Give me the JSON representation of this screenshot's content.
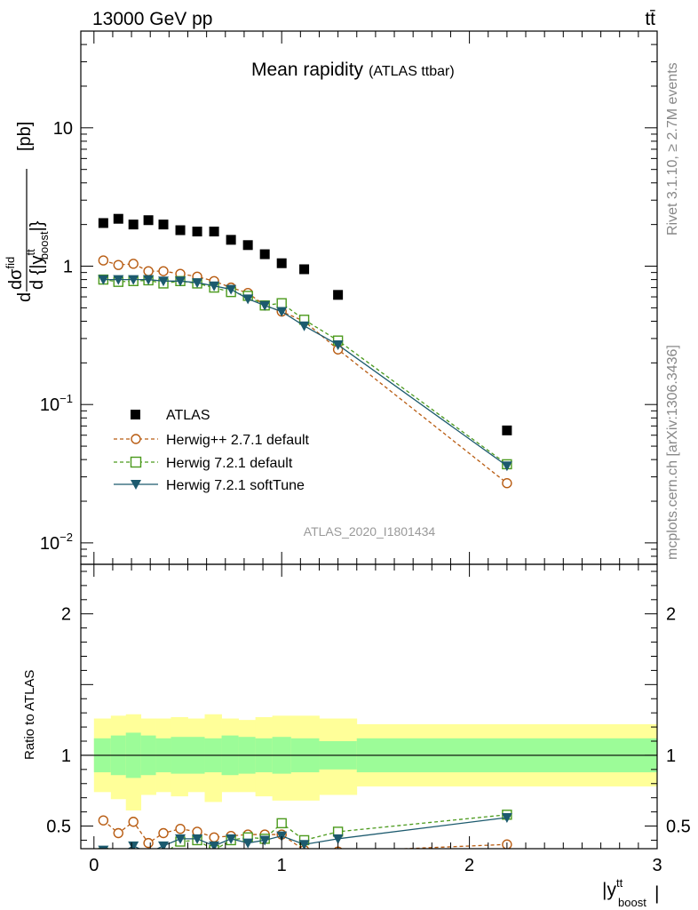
{
  "header": {
    "energy_label": "13000 GeV pp",
    "process_label": "tt̄"
  },
  "side_text": {
    "rivet": "Rivet 3.1.10, ≥ 2.7M events",
    "mcplots": "mcplots.cern.ch [arXiv:1306.3436]"
  },
  "chart_data": [
    {
      "type": "scatter",
      "title": "Mean rapidity",
      "subtitle": "(ATLAS ttbar)",
      "ylabel_parts": [
        "d",
        "dσ",
        "fid",
        "d {|y",
        "tt",
        "boost",
        "|}",
        "[pb]"
      ],
      "xlabel_parts": [
        "|y",
        "tt",
        "boost",
        "|"
      ],
      "y_scale": "log",
      "ylim": [
        0.007,
        50
      ],
      "xlim": [
        -0.07,
        3.0
      ],
      "y_ticks": [
        {
          "v": 0.01,
          "base": "10",
          "exp": "−2"
        },
        {
          "v": 0.1,
          "base": "10",
          "exp": "−1"
        },
        {
          "v": 1,
          "base": "1",
          "exp": ""
        },
        {
          "v": 10,
          "base": "10",
          "exp": ""
        }
      ],
      "analysis_label": "ATLAS_2020_I1801434",
      "legend_position": "bottom-left",
      "series": [
        {
          "name": "ATLAS",
          "marker": "filled-square",
          "color": "#000000",
          "x": [
            0.05,
            0.13,
            0.21,
            0.29,
            0.37,
            0.46,
            0.55,
            0.64,
            0.73,
            0.82,
            0.91,
            1.0,
            1.12,
            1.3,
            2.2
          ],
          "y": [
            2.05,
            2.2,
            2.0,
            2.15,
            2.0,
            1.82,
            1.78,
            1.78,
            1.55,
            1.42,
            1.22,
            1.05,
            0.95,
            0.62,
            0.065
          ]
        },
        {
          "name": "Herwig++ 2.7.1 default",
          "marker": "open-circle",
          "color": "#b85c12",
          "dash": true,
          "x": [
            0.05,
            0.13,
            0.21,
            0.29,
            0.37,
            0.46,
            0.55,
            0.64,
            0.73,
            0.82,
            0.91,
            1.0,
            1.12,
            1.3,
            2.2
          ],
          "y": [
            1.1,
            1.02,
            1.04,
            0.92,
            0.92,
            0.88,
            0.84,
            0.78,
            0.7,
            0.64,
            0.52,
            0.47,
            0.4,
            0.25,
            0.027
          ]
        },
        {
          "name": "Herwig 7.2.1 default",
          "marker": "open-square",
          "color": "#4b9a1c",
          "dash": true,
          "x": [
            0.05,
            0.13,
            0.21,
            0.29,
            0.37,
            0.46,
            0.55,
            0.64,
            0.73,
            0.82,
            0.91,
            1.0,
            1.12,
            1.3,
            2.2
          ],
          "y": [
            0.8,
            0.77,
            0.78,
            0.79,
            0.75,
            0.78,
            0.75,
            0.7,
            0.65,
            0.61,
            0.52,
            0.54,
            0.41,
            0.29,
            0.037
          ]
        },
        {
          "name": "Herwig 7.2.1 softTune",
          "marker": "filled-triangle-down",
          "color": "#1c5a6e",
          "dash": false,
          "x": [
            0.05,
            0.13,
            0.21,
            0.29,
            0.37,
            0.46,
            0.55,
            0.64,
            0.73,
            0.82,
            0.91,
            1.0,
            1.12,
            1.3,
            2.2
          ],
          "y": [
            0.8,
            0.8,
            0.8,
            0.8,
            0.78,
            0.78,
            0.76,
            0.72,
            0.68,
            0.58,
            0.52,
            0.47,
            0.37,
            0.27,
            0.036
          ]
        }
      ]
    },
    {
      "type": "scatter",
      "ylabel": "Ratio to ATLAS",
      "ylim": [
        0.34,
        2.35
      ],
      "xlim": [
        -0.07,
        3.0
      ],
      "x_ticks": [
        0,
        1,
        2,
        3
      ],
      "y_ticks": [
        0.5,
        1,
        2
      ],
      "band_edges": [
        0.0,
        0.09,
        0.17,
        0.25,
        0.33,
        0.41,
        0.5,
        0.59,
        0.68,
        0.77,
        0.86,
        0.95,
        1.05,
        1.2,
        1.4,
        3.0
      ],
      "band_inner": [
        [
          0.88,
          1.12
        ],
        [
          0.86,
          1.14
        ],
        [
          0.84,
          1.16
        ],
        [
          0.86,
          1.14
        ],
        [
          0.88,
          1.12
        ],
        [
          0.87,
          1.13
        ],
        [
          0.87,
          1.13
        ],
        [
          0.88,
          1.12
        ],
        [
          0.86,
          1.14
        ],
        [
          0.87,
          1.13
        ],
        [
          0.88,
          1.12
        ],
        [
          0.87,
          1.13
        ],
        [
          0.88,
          1.12
        ],
        [
          0.9,
          1.1
        ],
        [
          0.88,
          1.12
        ]
      ],
      "band_outer": [
        [
          0.74,
          1.26
        ],
        [
          0.69,
          1.28
        ],
        [
          0.61,
          1.29
        ],
        [
          0.72,
          1.26
        ],
        [
          0.74,
          1.26
        ],
        [
          0.71,
          1.27
        ],
        [
          0.74,
          1.26
        ],
        [
          0.67,
          1.29
        ],
        [
          0.74,
          1.26
        ],
        [
          0.74,
          1.25
        ],
        [
          0.71,
          1.27
        ],
        [
          0.68,
          1.28
        ],
        [
          0.68,
          1.28
        ],
        [
          0.72,
          1.26
        ],
        [
          0.78,
          1.22
        ]
      ],
      "band_colors": {
        "inner": "#9cfc98",
        "outer": "#ffff99"
      },
      "series": [
        {
          "name": "Herwig++ 2.7.1 default",
          "color": "#b85c12",
          "marker": "open-circle",
          "dash": true,
          "x": [
            0.05,
            0.13,
            0.21,
            0.29,
            0.37,
            0.46,
            0.55,
            0.64,
            0.73,
            0.82,
            0.91,
            1.0,
            1.12,
            1.3,
            2.2
          ],
          "y": [
            0.54,
            0.45,
            0.53,
            0.38,
            0.45,
            0.48,
            0.46,
            0.42,
            0.43,
            0.44,
            0.44,
            0.44,
            0.33,
            0.32,
            0.37
          ],
          "err": [
            0.03,
            0.03,
            0.03,
            0.02,
            0.02,
            0.03,
            0.03,
            0.02,
            0.03,
            0.03,
            0.03,
            0.03,
            0.02,
            0.02,
            0.03
          ]
        },
        {
          "name": "Herwig 7.2.1 default",
          "color": "#4b9a1c",
          "marker": "open-square",
          "dash": true,
          "x": [
            0.05,
            0.13,
            0.21,
            0.29,
            0.37,
            0.46,
            0.55,
            0.64,
            0.73,
            0.82,
            0.91,
            1.0,
            1.12,
            1.3,
            2.2
          ],
          "y": [
            0.31,
            0.3,
            0.3,
            0.3,
            0.3,
            0.39,
            0.4,
            0.33,
            0.4,
            0.42,
            0.41,
            0.52,
            0.4,
            0.46,
            0.58
          ],
          "err": [
            0.02,
            0.02,
            0.02,
            0.02,
            0.02,
            0.02,
            0.02,
            0.02,
            0.03,
            0.03,
            0.03,
            0.03,
            0.03,
            0.03,
            0.03
          ]
        },
        {
          "name": "Herwig 7.2.1 softTune",
          "color": "#1c5a6e",
          "marker": "filled-triangle-down",
          "dash": false,
          "x": [
            0.05,
            0.13,
            0.21,
            0.29,
            0.37,
            0.46,
            0.55,
            0.64,
            0.73,
            0.82,
            0.91,
            1.0,
            1.12,
            1.3,
            2.2
          ],
          "y": [
            0.33,
            0.3,
            0.36,
            0.31,
            0.36,
            0.41,
            0.41,
            0.36,
            0.41,
            0.38,
            0.4,
            0.43,
            0.37,
            0.41,
            0.56
          ],
          "err": [
            0.02,
            0.02,
            0.02,
            0.02,
            0.02,
            0.02,
            0.02,
            0.02,
            0.02,
            0.02,
            0.02,
            0.03,
            0.02,
            0.03,
            0.03
          ]
        }
      ]
    }
  ]
}
